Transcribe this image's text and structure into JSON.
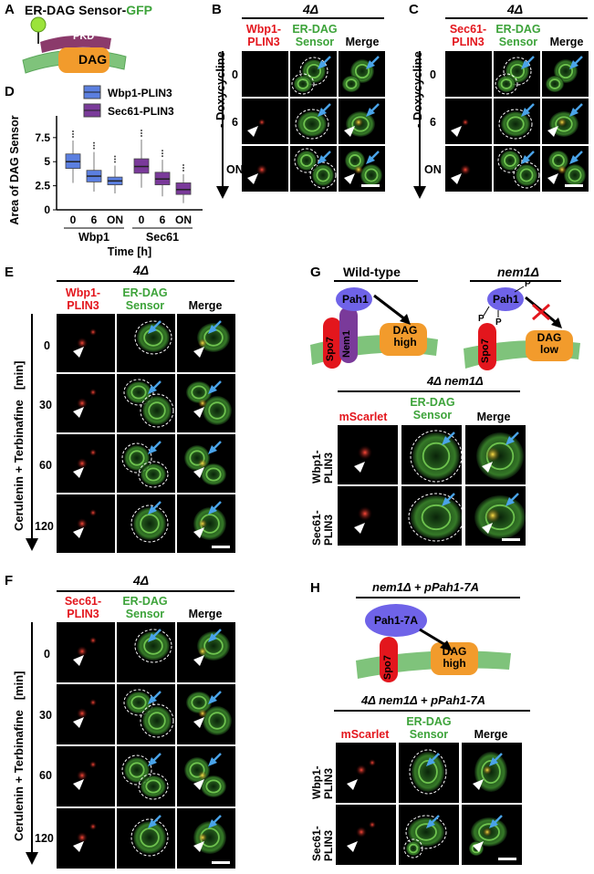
{
  "panel_letters": {
    "a": "A",
    "b": "B",
    "c": "C",
    "d": "D",
    "e": "E",
    "f": "F",
    "g": "G",
    "h": "H"
  },
  "panel_a": {
    "title_prefix": "ER-DAG Sensor-",
    "title_suffix": "GFP",
    "pkd": "PKD",
    "dag": "DAG"
  },
  "panel_b": {
    "header": "4Δ",
    "col1": [
      "Wbp1-",
      "PLIN3"
    ],
    "col2": [
      "ER-DAG",
      "Sensor"
    ],
    "col3": "Merge",
    "rows": [
      "0",
      "6",
      "ON"
    ],
    "axis": "- Doxycycline"
  },
  "panel_c": {
    "header": "4Δ",
    "col1": [
      "Sec61-",
      "PLIN3"
    ],
    "col2": [
      "ER-DAG",
      "Sensor"
    ],
    "col3": "Merge",
    "rows": [
      "0",
      "6",
      "ON"
    ],
    "axis": "- Doxycycline"
  },
  "panel_e": {
    "header": "4Δ",
    "col1": [
      "Wbp1-",
      "PLIN3"
    ],
    "col2": [
      "ER-DAG",
      "Sensor"
    ],
    "col3": "Merge",
    "rows": [
      "0",
      "30",
      "60",
      "120"
    ],
    "axis": "Cerulenin + Terbinafine",
    "unit": "[min]"
  },
  "panel_f": {
    "header": "4Δ",
    "col1": [
      "Sec61-",
      "PLIN3"
    ],
    "col2": [
      "ER-DAG",
      "Sensor"
    ],
    "col3": "Merge",
    "rows": [
      "0",
      "30",
      "60",
      "120"
    ],
    "axis": "Cerulenin + Terbinafine",
    "unit": "[min]"
  },
  "panel_g": {
    "wt_title": "Wild-type",
    "mut_title": "nem1Δ",
    "pah1": "Pah1",
    "spo7": "Spo7",
    "nem1": "Nem1",
    "dag_high": [
      "DAG",
      "high"
    ],
    "dag_low": [
      "DAG",
      "low"
    ],
    "p": "P",
    "sub_header": "4Δ nem1Δ",
    "col1": "mScarlet",
    "col2": [
      "ER-DAG",
      "Sensor"
    ],
    "col3": "Merge",
    "rows": [
      [
        "Wbp1-",
        "PLIN3"
      ],
      [
        "Sec61-",
        "PLIN3"
      ]
    ]
  },
  "panel_h": {
    "title": "nem1Δ + pPah1-7A",
    "pah1": "Pah1-7A",
    "spo7": "Spo7",
    "dag_high": [
      "DAG",
      "high"
    ],
    "sub_header": "4Δ nem1Δ + pPah1-7A",
    "col1": "mScarlet",
    "col2": [
      "ER-DAG",
      "Sensor"
    ],
    "col3": "Merge",
    "rows": [
      [
        "Wbp1-",
        "PLIN3"
      ],
      [
        "Sec61-",
        "PLIN3"
      ]
    ]
  },
  "colors": {
    "red": "#e3161d",
    "green": "#3da33a",
    "blue_box": "#5b7fe0",
    "purple_box": "#7a3a9a",
    "orange": "#f29b2c",
    "pah1": "#6f63e8",
    "arrow": "#4aa3e8"
  },
  "chart_data": {
    "type": "box",
    "ylabel": "Area of DAG Sensor",
    "xlabel": "Time [h]",
    "group_labels": [
      "Wbp1",
      "Sec61"
    ],
    "categories": [
      "0",
      "6",
      "ON",
      "0",
      "6",
      "ON"
    ],
    "ylim": [
      0,
      9
    ],
    "yticks": [
      "0",
      "2.5",
      "5",
      "7.5"
    ],
    "legend": [
      "Wbp1-PLIN3",
      "Sec61-PLIN3"
    ],
    "series": [
      {
        "name": "Wbp1-PLIN3",
        "boxes": [
          {
            "q1": 4.3,
            "median": 5.0,
            "q3": 5.8,
            "min": 2.8,
            "max": 7.2
          },
          {
            "q1": 2.9,
            "median": 3.5,
            "q3": 4.1,
            "min": 1.9,
            "max": 6.0
          },
          {
            "q1": 2.6,
            "median": 3.0,
            "q3": 3.4,
            "min": 1.7,
            "max": 4.6
          }
        ]
      },
      {
        "name": "Sec61-PLIN3",
        "boxes": [
          {
            "q1": 3.8,
            "median": 4.5,
            "q3": 5.3,
            "min": 2.3,
            "max": 7.3
          },
          {
            "q1": 2.6,
            "median": 3.2,
            "q3": 3.9,
            "min": 1.4,
            "max": 5.2
          },
          {
            "q1": 1.6,
            "median": 2.1,
            "q3": 2.8,
            "min": 0.7,
            "max": 3.7
          }
        ]
      }
    ]
  }
}
